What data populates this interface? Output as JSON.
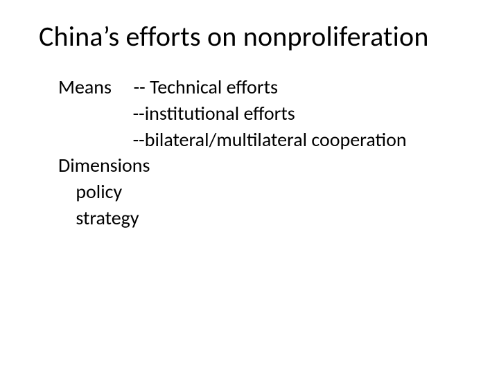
{
  "slide": {
    "title": "China’s efforts on nonproliferation",
    "lines": [
      "Means     -- Technical efforts",
      "                 --institutional efforts",
      "                 --bilateral/multilateral cooperation",
      "Dimensions",
      "    policy",
      "    strategy"
    ]
  },
  "style": {
    "background_color": "#ffffff",
    "text_color": "#000000",
    "title_fontsize": 40,
    "body_fontsize": 28,
    "font_family": "Calibri"
  }
}
